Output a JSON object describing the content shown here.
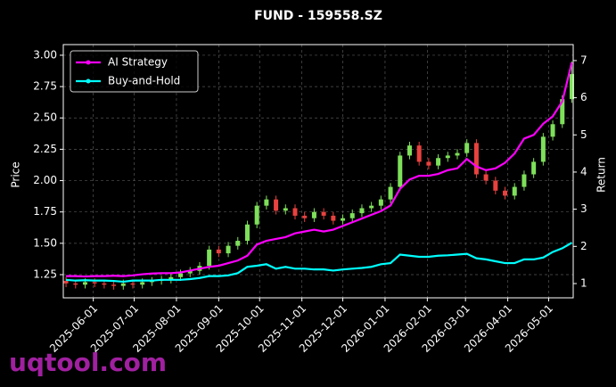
{
  "chart_data": {
    "type": "candlestick",
    "title": "FUND - 159558.SZ",
    "watermark": "uqtool.com",
    "ylabel": "Price",
    "y2label": "Return",
    "x": [
      "2025-05-12",
      "2025-05-19",
      "2025-05-26",
      "2025-06-02",
      "2025-06-09",
      "2025-06-16",
      "2025-06-23",
      "2025-06-30",
      "2025-07-07",
      "2025-07-14",
      "2025-07-21",
      "2025-07-28",
      "2025-08-04",
      "2025-08-11",
      "2025-08-18",
      "2025-08-25",
      "2025-09-01",
      "2025-09-08",
      "2025-09-15",
      "2025-09-22",
      "2025-09-29",
      "2025-10-06",
      "2025-10-13",
      "2025-10-20",
      "2025-10-27",
      "2025-11-03",
      "2025-11-10",
      "2025-11-17",
      "2025-11-24",
      "2025-12-01",
      "2025-12-08",
      "2025-12-15",
      "2025-12-22",
      "2025-12-29",
      "2026-01-05",
      "2026-01-12",
      "2026-01-19",
      "2026-01-26",
      "2026-02-02",
      "2026-02-09",
      "2026-02-16",
      "2026-02-23",
      "2026-03-02",
      "2026-03-09",
      "2026-03-16",
      "2026-03-23",
      "2026-03-30",
      "2026-04-06",
      "2026-04-13",
      "2026-04-20",
      "2026-04-27",
      "2026-05-04",
      "2026-05-11",
      "2026-05-18"
    ],
    "open": [
      1.2,
      1.18,
      1.17,
      1.19,
      1.18,
      1.17,
      1.16,
      1.18,
      1.17,
      1.19,
      1.2,
      1.21,
      1.23,
      1.26,
      1.28,
      1.32,
      1.45,
      1.42,
      1.48,
      1.52,
      1.65,
      1.8,
      1.85,
      1.76,
      1.78,
      1.72,
      1.7,
      1.75,
      1.72,
      1.68,
      1.7,
      1.74,
      1.78,
      1.8,
      1.85,
      1.95,
      2.2,
      2.28,
      2.15,
      2.12,
      2.18,
      2.2,
      2.22,
      2.3,
      2.05,
      2.0,
      1.92,
      1.88,
      1.95,
      2.05,
      2.15,
      2.35,
      2.45,
      2.65
    ],
    "high": [
      1.23,
      1.21,
      1.22,
      1.22,
      1.21,
      1.2,
      1.21,
      1.21,
      1.22,
      1.23,
      1.24,
      1.26,
      1.29,
      1.31,
      1.35,
      1.48,
      1.48,
      1.51,
      1.55,
      1.68,
      1.83,
      1.88,
      1.88,
      1.81,
      1.81,
      1.75,
      1.78,
      1.78,
      1.75,
      1.73,
      1.77,
      1.81,
      1.83,
      1.88,
      1.98,
      2.23,
      2.31,
      2.31,
      2.18,
      2.21,
      2.23,
      2.25,
      2.33,
      2.33,
      2.08,
      2.03,
      1.95,
      1.98,
      2.08,
      2.18,
      2.38,
      2.48,
      2.68,
      2.95
    ],
    "low": [
      1.15,
      1.14,
      1.14,
      1.15,
      1.14,
      1.13,
      1.13,
      1.14,
      1.14,
      1.16,
      1.17,
      1.18,
      1.2,
      1.23,
      1.25,
      1.29,
      1.39,
      1.39,
      1.45,
      1.49,
      1.62,
      1.77,
      1.73,
      1.73,
      1.69,
      1.67,
      1.67,
      1.69,
      1.65,
      1.65,
      1.67,
      1.71,
      1.75,
      1.77,
      1.82,
      1.92,
      2.17,
      2.12,
      2.09,
      2.09,
      2.15,
      2.17,
      2.19,
      2.02,
      1.97,
      1.89,
      1.85,
      1.85,
      1.92,
      2.02,
      2.12,
      2.32,
      2.42,
      2.62
    ],
    "close": [
      1.18,
      1.17,
      1.19,
      1.18,
      1.17,
      1.16,
      1.18,
      1.17,
      1.19,
      1.2,
      1.21,
      1.23,
      1.26,
      1.28,
      1.32,
      1.45,
      1.42,
      1.48,
      1.52,
      1.65,
      1.8,
      1.85,
      1.76,
      1.78,
      1.72,
      1.7,
      1.75,
      1.72,
      1.68,
      1.7,
      1.74,
      1.78,
      1.8,
      1.85,
      1.95,
      2.2,
      2.28,
      2.15,
      2.12,
      2.18,
      2.2,
      2.22,
      2.3,
      2.05,
      2.0,
      1.92,
      1.88,
      1.95,
      2.05,
      2.15,
      2.35,
      2.45,
      2.65,
      2.85
    ],
    "up_color": "#7ee05a",
    "down_color": "#e8423f",
    "series": [
      {
        "name": "AI Strategy",
        "color": "#ff00ff",
        "axis": "y2",
        "values": [
          1.2,
          1.2,
          1.19,
          1.2,
          1.2,
          1.21,
          1.2,
          1.22,
          1.25,
          1.27,
          1.28,
          1.28,
          1.3,
          1.35,
          1.4,
          1.45,
          1.48,
          1.55,
          1.62,
          1.75,
          2.05,
          2.15,
          2.2,
          2.25,
          2.35,
          2.4,
          2.45,
          2.4,
          2.45,
          2.55,
          2.65,
          2.75,
          2.85,
          2.95,
          3.1,
          3.55,
          3.8,
          3.9,
          3.9,
          3.95,
          4.05,
          4.1,
          4.35,
          4.15,
          4.05,
          4.1,
          4.25,
          4.5,
          4.9,
          5.0,
          5.3,
          5.5,
          5.9,
          6.95
        ]
      },
      {
        "name": "Buy-and-Hold",
        "color": "#00ffff",
        "axis": "y2",
        "values": [
          1.1,
          1.08,
          1.09,
          1.08,
          1.08,
          1.07,
          1.05,
          1.08,
          1.08,
          1.08,
          1.1,
          1.1,
          1.1,
          1.12,
          1.15,
          1.2,
          1.2,
          1.22,
          1.28,
          1.45,
          1.48,
          1.52,
          1.4,
          1.45,
          1.4,
          1.4,
          1.38,
          1.38,
          1.35,
          1.38,
          1.4,
          1.42,
          1.45,
          1.52,
          1.55,
          1.78,
          1.75,
          1.72,
          1.72,
          1.75,
          1.76,
          1.78,
          1.8,
          1.68,
          1.65,
          1.6,
          1.55,
          1.55,
          1.65,
          1.65,
          1.7,
          1.85,
          1.95,
          2.1
        ]
      }
    ],
    "xlim": [
      "2025-05-10",
      "2026-05-19"
    ],
    "xticks": [
      "2025-06-01",
      "2025-07-01",
      "2025-08-01",
      "2025-09-01",
      "2025-10-01",
      "2025-11-01",
      "2025-12-01",
      "2026-01-01",
      "2026-02-01",
      "2026-03-01",
      "2026-04-01",
      "2026-05-01"
    ],
    "ylim": [
      1.065,
      3.085
    ],
    "yticks": [
      {
        "value": 1.25,
        "label": "1.25"
      },
      {
        "value": 1.5,
        "label": "1.50"
      },
      {
        "value": 1.75,
        "label": "1.75"
      },
      {
        "value": 2,
        "label": "2.00"
      },
      {
        "value": 2.25,
        "label": "2.25"
      },
      {
        "value": 2.5,
        "label": "2.50"
      },
      {
        "value": 2.75,
        "label": "2.75"
      },
      {
        "value": 3,
        "label": "3.00"
      }
    ],
    "y2lim": [
      0.616,
      7.43
    ],
    "y2ticks": [
      1,
      2,
      3,
      4,
      5,
      6,
      7
    ],
    "grid": true,
    "legend": "upper left"
  }
}
